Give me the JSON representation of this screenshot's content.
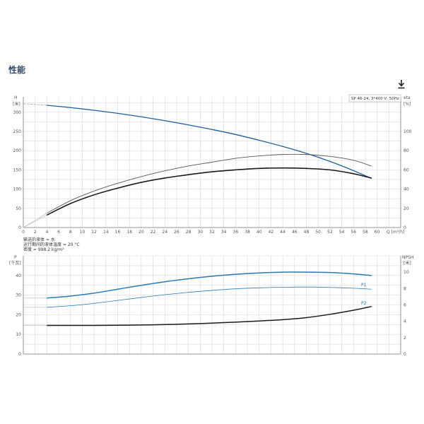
{
  "page": {
    "title": "性能"
  },
  "icons": {
    "download": "download-icon"
  },
  "chart_data": [
    {
      "type": "line",
      "id": "head-efficiency",
      "pump_label": "SP 46-24, 3*400 V, 50Hz",
      "left_axis": {
        "label": "H",
        "unit": "[米]",
        "range": [
          0,
          340
        ],
        "ticks": [
          0,
          50,
          100,
          150,
          200,
          250,
          300
        ]
      },
      "right_axis": {
        "label": "eta",
        "unit": "[%]",
        "range": [
          0,
          136
        ],
        "ticks": [
          0,
          20,
          40,
          60,
          80,
          100
        ]
      },
      "x_axis": {
        "label": "Q [m³/h]",
        "range": [
          0,
          64
        ],
        "ticks": [
          0,
          2,
          4,
          6,
          8,
          10,
          12,
          14,
          16,
          18,
          20,
          22,
          24,
          26,
          28,
          30,
          32,
          34,
          36,
          38,
          40,
          42,
          44,
          46,
          48,
          50,
          52,
          54,
          56,
          58,
          60
        ]
      },
      "series": [
        {
          "axis": "left",
          "color": "#1f5f9a",
          "width": 1.3,
          "x": [
            4,
            8,
            12,
            16,
            20,
            24,
            28,
            32,
            36,
            40,
            44,
            48,
            52,
            56,
            59
          ],
          "y": [
            318,
            312,
            305,
            297,
            288,
            278,
            267,
            255,
            242,
            227,
            211,
            193,
            172,
            148,
            128
          ]
        },
        {
          "axis": "left",
          "color": "#aaaaaa",
          "width": 0.8,
          "dashed": true,
          "x": [
            0,
            4
          ],
          "y": [
            322,
            318
          ]
        },
        {
          "axis": "right",
          "color": "#555555",
          "width": 0.9,
          "x": [
            4,
            8,
            12,
            16,
            20,
            24,
            28,
            32,
            36,
            40,
            44,
            48,
            52,
            56,
            59
          ],
          "y": [
            15,
            28,
            38,
            46,
            53,
            59,
            64,
            68,
            72,
            74.5,
            76,
            76,
            74,
            70,
            64
          ]
        },
        {
          "axis": "right",
          "color": "#1a1a1a",
          "width": 1.6,
          "x": [
            4,
            8,
            12,
            16,
            20,
            24,
            28,
            32,
            36,
            40,
            44,
            48,
            52,
            56,
            59
          ],
          "y": [
            13,
            25,
            34,
            41,
            47,
            51.5,
            55,
            58,
            60,
            61.5,
            62,
            61.5,
            60,
            56,
            51.5
          ]
        },
        {
          "axis": "right",
          "color": "#bbbbbb",
          "width": 0.7,
          "x": [
            0,
            4
          ],
          "y": [
            0,
            13
          ]
        },
        {
          "axis": "right",
          "color": "#bbbbbb",
          "width": 0.7,
          "x": [
            0,
            4
          ],
          "y": [
            0,
            15
          ]
        }
      ],
      "info_lines": [
        "输送的液体 = 水",
        "运行期间的液体温度 = 20 °C",
        "密度 = 998.2 kg/m³"
      ]
    },
    {
      "type": "line",
      "id": "power-npsh",
      "left_axis": {
        "label": "P",
        "unit": "[千瓦]",
        "range": [
          0,
          50
        ],
        "ticks": [
          0,
          10,
          20,
          30,
          40
        ]
      },
      "right_axis": {
        "label": "NPSH",
        "unit": "[米]",
        "range": [
          0,
          12
        ],
        "ticks": [
          0,
          2,
          4,
          6,
          8,
          10
        ]
      },
      "x_axis": {
        "range": [
          0,
          64
        ]
      },
      "series": [
        {
          "name": "P1",
          "axis": "left",
          "color": "#2a7ab5",
          "width": 1.5,
          "x": [
            4,
            8,
            12,
            16,
            20,
            24,
            28,
            32,
            36,
            40,
            44,
            48,
            52,
            56,
            59
          ],
          "y": [
            28.5,
            29.5,
            31,
            33,
            35,
            36.8,
            38.3,
            39.6,
            40.6,
            41.3,
            41.7,
            41.7,
            41.5,
            40.8,
            40
          ]
        },
        {
          "name": "P2",
          "axis": "left",
          "color": "#2a7ab5",
          "width": 0.8,
          "x": [
            4,
            8,
            12,
            16,
            20,
            24,
            28,
            32,
            36,
            40,
            44,
            48,
            52,
            56,
            59
          ],
          "y": [
            23.8,
            24.6,
            25.8,
            27.3,
            28.8,
            30.2,
            31.4,
            32.4,
            33.2,
            33.7,
            34,
            34.1,
            33.9,
            33.5,
            33
          ]
        },
        {
          "axis": "right",
          "color": "#1a1a1a",
          "width": 1.5,
          "x": [
            4,
            8,
            12,
            16,
            20,
            24,
            28,
            32,
            36,
            40,
            44,
            48,
            52,
            56,
            59
          ],
          "y": [
            3.5,
            3.5,
            3.5,
            3.52,
            3.55,
            3.6,
            3.68,
            3.78,
            3.9,
            4.04,
            4.2,
            4.45,
            4.85,
            5.35,
            5.8
          ]
        },
        {
          "axis": "left",
          "color": "#bbbbbb",
          "width": 0.6,
          "x": [
            0,
            4
          ],
          "y": [
            28.5,
            28.5
          ]
        },
        {
          "axis": "left",
          "color": "#bbbbbb",
          "width": 0.6,
          "x": [
            0,
            4
          ],
          "y": [
            23.8,
            23.8
          ]
        },
        {
          "axis": "right",
          "color": "#bbbbbb",
          "width": 0.6,
          "x": [
            0,
            4
          ],
          "y": [
            3.5,
            3.5
          ]
        }
      ]
    }
  ]
}
